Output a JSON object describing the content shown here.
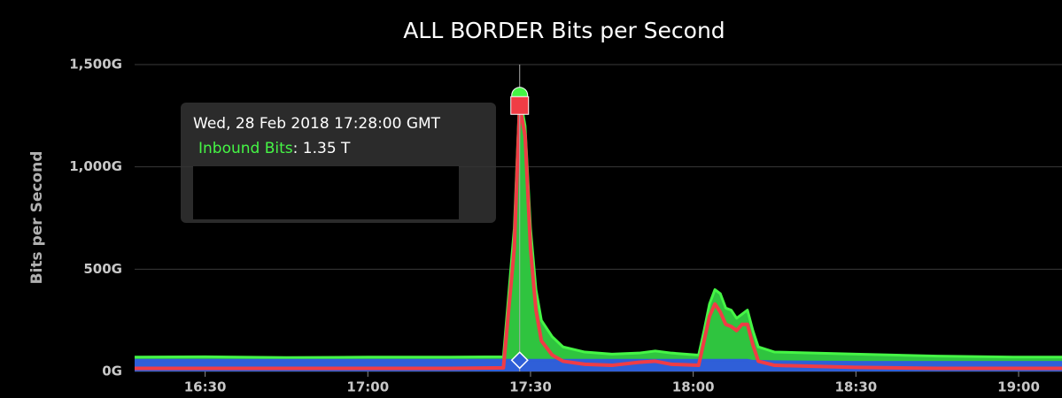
{
  "chart_data": {
    "type": "area",
    "title": "ALL BORDER Bits per Second",
    "y_label": "Bits per Second",
    "x": [
      "16:17",
      "16:30",
      "16:45",
      "17:00",
      "17:15",
      "17:25",
      "17:27",
      "17:28",
      "17:29",
      "17:30",
      "17:31",
      "17:32",
      "17:34",
      "17:36",
      "17:40",
      "17:45",
      "17:50",
      "17:53",
      "17:56",
      "18:01",
      "18:02",
      "18:03",
      "18:04",
      "18:05",
      "18:06",
      "18:07",
      "18:08",
      "18:09",
      "18:10",
      "18:11",
      "18:12",
      "18:15",
      "18:30",
      "18:45",
      "19:00",
      "19:08"
    ],
    "xlim": [
      "16:17",
      "19:08"
    ],
    "xticks": [
      "16:30",
      "17:00",
      "17:30",
      "18:00",
      "18:30",
      "19:00"
    ],
    "ylim": [
      0,
      1500
    ],
    "yticks": [
      {
        "value": 0,
        "label": "0G"
      },
      {
        "value": 500,
        "label": "500G"
      },
      {
        "value": 1000,
        "label": "1,000G"
      },
      {
        "value": 1500,
        "label": "1,500G"
      }
    ],
    "grid": true,
    "series": [
      {
        "name": "Inbound Bits",
        "color": "#2fc43f",
        "line_color": "#45f545",
        "style": "area",
        "values": [
          70,
          72,
          68,
          70,
          70,
          72,
          700,
          1350,
          1200,
          700,
          400,
          250,
          170,
          120,
          95,
          85,
          90,
          100,
          90,
          80,
          200,
          330,
          400,
          380,
          310,
          300,
          260,
          280,
          300,
          200,
          120,
          95,
          85,
          75,
          70,
          70
        ]
      },
      {
        "color": "#2f5fd8",
        "style": "area",
        "values": [
          55,
          55,
          55,
          55,
          55,
          55,
          55,
          55,
          55,
          55,
          55,
          55,
          55,
          55,
          55,
          55,
          55,
          55,
          55,
          55,
          55,
          55,
          55,
          55,
          55,
          55,
          55,
          55,
          55,
          50,
          50,
          48,
          45,
          45,
          45,
          45
        ]
      },
      {
        "color": "#f03c45",
        "style": "line",
        "values": [
          15,
          15,
          15,
          15,
          15,
          18,
          600,
          1300,
          1150,
          600,
          300,
          150,
          80,
          50,
          35,
          30,
          45,
          50,
          35,
          30,
          150,
          270,
          330,
          290,
          230,
          220,
          200,
          230,
          230,
          130,
          50,
          30,
          20,
          15,
          15,
          15
        ]
      }
    ],
    "tooltip": {
      "index": 7,
      "date": "Wed, 28 Feb 2018 17:28:00 GMT",
      "series": "Inbound Bits",
      "value": 1350,
      "value_label": "1.35 T"
    }
  }
}
